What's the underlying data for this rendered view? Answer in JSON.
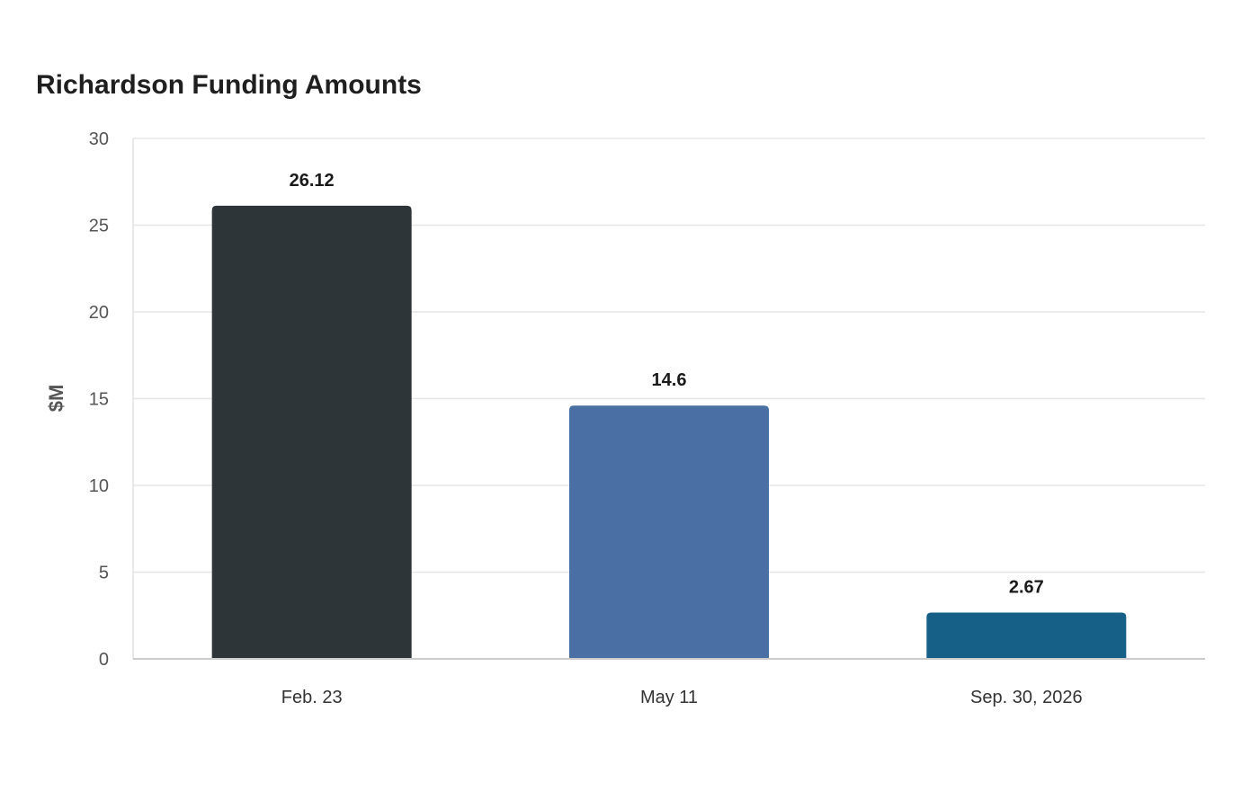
{
  "chart_data": {
    "type": "bar",
    "title": "Richardson Funding Amounts",
    "xlabel": "",
    "ylabel": "$M",
    "categories": [
      "Feb. 23",
      "May 11",
      "Sep. 30, 2026"
    ],
    "values": [
      26.12,
      14.6,
      2.67
    ],
    "value_labels": [
      "26.12",
      "14.6",
      "2.67"
    ],
    "bar_colors": [
      "#2e3538",
      "#4a6fa5",
      "#166088"
    ],
    "ylim": [
      0,
      30
    ],
    "yticks": [
      0,
      5,
      10,
      15,
      20,
      25,
      30
    ],
    "grid": true,
    "legend": "none"
  }
}
